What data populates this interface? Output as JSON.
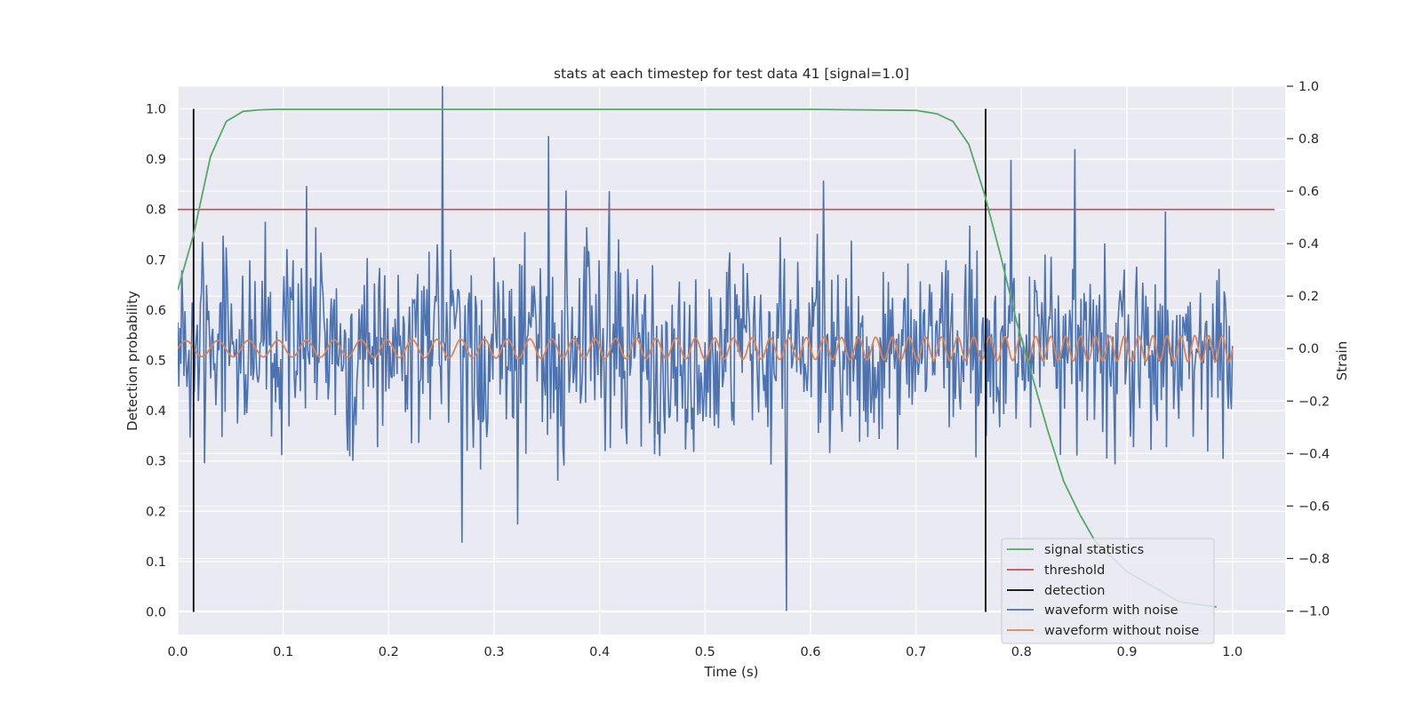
{
  "chart_data": {
    "type": "line",
    "title": "stats at each timestep for test data 41 [signal=1.0]",
    "xlabel": "Time (s)",
    "ylabel": "Detection probability",
    "y2label": "Strain",
    "xlim": [
      0.0,
      1.05
    ],
    "ylim": [
      -0.045,
      1.045
    ],
    "y2lim": [
      -1.09,
      1.0
    ],
    "x_ticks": [
      "0.0",
      "0.1",
      "0.2",
      "0.3",
      "0.4",
      "0.5",
      "0.6",
      "0.7",
      "0.8",
      "0.9",
      "1.0"
    ],
    "y_ticks": [
      "0.0",
      "0.1",
      "0.2",
      "0.3",
      "0.4",
      "0.5",
      "0.6",
      "0.7",
      "0.8",
      "0.9",
      "1.0"
    ],
    "y2_ticks": [
      "−1.0",
      "−0.8",
      "−0.6",
      "−0.4",
      "−0.2",
      "0.0",
      "0.2",
      "0.4",
      "0.6",
      "0.8",
      "1.0"
    ],
    "grid": true,
    "legend_position": "lower-right",
    "colors": {
      "signal_statistics": "#55a868",
      "threshold": "#c44e52",
      "detection": "#000000",
      "waveform_with_noise": "#4c72b0",
      "waveform_without_noise": "#dd8452",
      "plot_background": "#eaeaf2",
      "grid": "#ffffff"
    },
    "series": [
      {
        "name": "signal statistics",
        "axis": "left",
        "x": [
          0.0,
          0.015,
          0.031,
          0.046,
          0.062,
          0.077,
          0.093,
          0.108,
          0.2,
          0.3,
          0.4,
          0.5,
          0.6,
          0.7,
          0.72,
          0.735,
          0.75,
          0.765,
          0.78,
          0.795,
          0.81,
          0.825,
          0.84,
          0.855,
          0.87,
          0.9,
          0.95,
          0.985
        ],
        "values": [
          0.64,
          0.75,
          0.905,
          0.975,
          0.995,
          0.998,
          0.999,
          0.999,
          0.999,
          0.999,
          0.999,
          0.999,
          0.999,
          0.997,
          0.99,
          0.975,
          0.93,
          0.83,
          0.71,
          0.58,
          0.47,
          0.36,
          0.26,
          0.195,
          0.14,
          0.08,
          0.02,
          0.01
        ]
      },
      {
        "name": "threshold",
        "axis": "left",
        "x": [
          0.0,
          1.04
        ],
        "values": [
          0.8,
          0.8
        ]
      },
      {
        "name": "detection",
        "axis": "left",
        "x": [
          0.015,
          0.766
        ],
        "values": [
          1.0,
          1.0
        ]
      },
      {
        "name": "waveform with noise",
        "axis": "right",
        "x_range": [
          0.0,
          1.0
        ],
        "peaks": [
          [
            0.251,
            1.0
          ],
          [
            0.352,
            0.81
          ],
          [
            0.577,
            -1.0
          ],
          [
            0.851,
            0.76
          ],
          [
            0.27,
            -0.74
          ],
          [
            0.322,
            -0.67
          ],
          [
            0.122,
            0.62
          ],
          [
            0.79,
            0.72
          ],
          [
            0.612,
            0.64
          ],
          [
            0.409,
            0.6
          ]
        ]
      },
      {
        "name": "waveform without noise",
        "axis": "right",
        "x_range": [
          0.0,
          1.0
        ],
        "amplitude_range": [
          0.03,
          0.05
        ]
      }
    ]
  }
}
